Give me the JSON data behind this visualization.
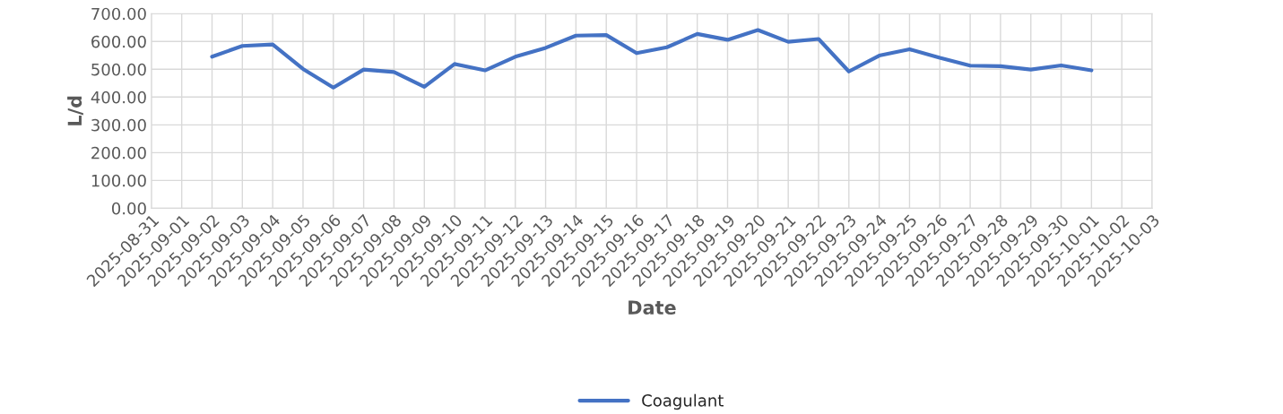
{
  "chart_data": {
    "type": "line",
    "xlabel": "Date",
    "ylabel": "L/d",
    "x": [
      "2025-09-02",
      "2025-09-03",
      "2025-09-04",
      "2025-09-05",
      "2025-09-06",
      "2025-09-07",
      "2025-09-08",
      "2025-09-09",
      "2025-09-10",
      "2025-09-11",
      "2025-09-12",
      "2025-09-13",
      "2025-09-14",
      "2025-09-15",
      "2025-09-16",
      "2025-09-17",
      "2025-09-18",
      "2025-09-19",
      "2025-09-20",
      "2025-09-21",
      "2025-09-22",
      "2025-09-23",
      "2025-09-24",
      "2025-09-25",
      "2025-09-26",
      "2025-09-27",
      "2025-09-28",
      "2025-09-29",
      "2025-09-30",
      "2025-10-01"
    ],
    "series": [
      {
        "name": "Coagulant",
        "color": "#4472c4",
        "values": [
          545,
          584,
          589,
          501,
          434,
          499,
          490,
          437,
          519,
          496,
          545,
          577,
          621,
          623,
          558,
          579,
          627,
          606,
          641,
          599,
          609,
          492,
          549,
          572,
          541,
          513,
          511,
          499,
          514,
          496
        ]
      }
    ],
    "xlim": [
      "2025-08-31",
      "2025-10-03"
    ],
    "xticks": [
      "2025-08-31",
      "2025-09-01",
      "2025-09-02",
      "2025-09-03",
      "2025-09-04",
      "2025-09-05",
      "2025-09-06",
      "2025-09-07",
      "2025-09-08",
      "2025-09-09",
      "2025-09-10",
      "2025-09-11",
      "2025-09-12",
      "2025-09-13",
      "2025-09-14",
      "2025-09-15",
      "2025-09-16",
      "2025-09-17",
      "2025-09-18",
      "2025-09-19",
      "2025-09-20",
      "2025-09-21",
      "2025-09-22",
      "2025-09-23",
      "2025-09-24",
      "2025-09-25",
      "2025-09-26",
      "2025-09-27",
      "2025-09-28",
      "2025-09-29",
      "2025-09-30",
      "2025-10-01",
      "2025-10-02",
      "2025-10-03"
    ],
    "ylim": [
      0,
      700
    ],
    "yticks": [
      {
        "value": 0,
        "label": "0.00"
      },
      {
        "value": 100,
        "label": "100.00"
      },
      {
        "value": 200,
        "label": "200.00"
      },
      {
        "value": 300,
        "label": "300.00"
      },
      {
        "value": 400,
        "label": "400.00"
      },
      {
        "value": 500,
        "label": "500.00"
      },
      {
        "value": 600,
        "label": "600.00"
      },
      {
        "value": 700,
        "label": "700.00"
      }
    ],
    "grid": true,
    "legend": "bottom",
    "marker": "none",
    "line_style": "solid"
  }
}
